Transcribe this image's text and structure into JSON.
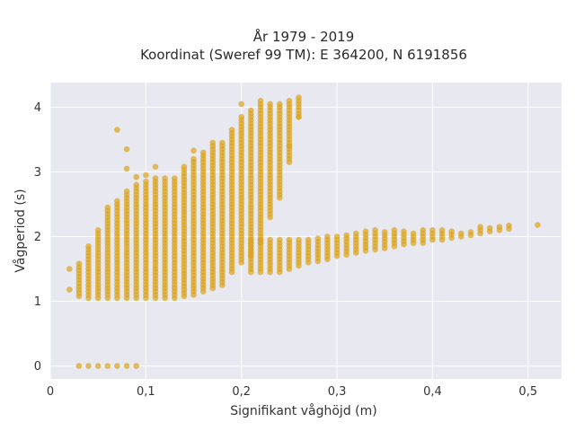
{
  "chart_data": {
    "type": "scatter",
    "title": "År 1979 - 2019",
    "subtitle": "Koordinat (Sweref 99 TM): E 364200, N 6191856",
    "xlabel": "Signifikant våghöjd (m)",
    "ylabel": "Vågperiod (s)",
    "xlim": [
      0,
      0.535
    ],
    "ylim": [
      -0.2,
      4.38
    ],
    "xticks": [
      0,
      0.1,
      0.2,
      0.3,
      0.4,
      0.5
    ],
    "xtick_labels": [
      "0",
      "0,1",
      "0,2",
      "0,3",
      "0,4",
      "0,5"
    ],
    "yticks": [
      0,
      1,
      2,
      3,
      4
    ],
    "ytick_labels": [
      "0",
      "1",
      "2",
      "3",
      "4"
    ],
    "grid": true,
    "background": "#e8e8f0",
    "marker_color": "#daa520",
    "columns": [
      {
        "x": 0.02,
        "ymin": 1.5,
        "ymax": 1.5
      },
      {
        "x": 0.03,
        "ymin": 1.08,
        "ymax": 1.6
      },
      {
        "x": 0.04,
        "ymin": 1.05,
        "ymax": 1.85
      },
      {
        "x": 0.05,
        "ymin": 1.05,
        "ymax": 2.1
      },
      {
        "x": 0.06,
        "ymin": 1.05,
        "ymax": 2.45
      },
      {
        "x": 0.07,
        "ymin": 1.05,
        "ymax": 2.55
      },
      {
        "x": 0.08,
        "ymin": 1.05,
        "ymax": 2.7
      },
      {
        "x": 0.09,
        "ymin": 1.05,
        "ymax": 2.8
      },
      {
        "x": 0.1,
        "ymin": 1.05,
        "ymax": 2.85
      },
      {
        "x": 0.11,
        "ymin": 1.05,
        "ymax": 2.9
      },
      {
        "x": 0.12,
        "ymin": 1.05,
        "ymax": 2.9
      },
      {
        "x": 0.13,
        "ymin": 1.05,
        "ymax": 2.9
      },
      {
        "x": 0.14,
        "ymin": 1.08,
        "ymax": 3.1
      },
      {
        "x": 0.15,
        "ymin": 1.1,
        "ymax": 3.2
      },
      {
        "x": 0.16,
        "ymin": 1.15,
        "ymax": 3.3
      },
      {
        "x": 0.17,
        "ymin": 1.2,
        "ymax": 3.45
      },
      {
        "x": 0.18,
        "ymin": 1.25,
        "ymax": 3.45
      },
      {
        "x": 0.19,
        "ymin": 1.45,
        "ymax": 3.65
      },
      {
        "x": 0.2,
        "ymin": 1.6,
        "ymax": 3.85
      },
      {
        "x": 0.21,
        "ymin": 1.7,
        "ymax": 3.95
      },
      {
        "x": 0.22,
        "ymin": 1.9,
        "ymax": 4.05
      },
      {
        "x": 0.23,
        "ymin": 2.3,
        "ymax": 4.05
      },
      {
        "x": 0.24,
        "ymin": 2.6,
        "ymax": 4.05
      },
      {
        "x": 0.25,
        "ymin": 3.15,
        "ymax": 4.1
      },
      {
        "x": 0.26,
        "ymin": 3.85,
        "ymax": 4.15
      }
    ],
    "lower_band": [
      {
        "x": 0.21,
        "ymin": 1.45,
        "ymax": 1.95
      },
      {
        "x": 0.22,
        "ymin": 1.45,
        "ymax": 1.95
      },
      {
        "x": 0.23,
        "ymin": 1.45,
        "ymax": 1.95
      },
      {
        "x": 0.24,
        "ymin": 1.45,
        "ymax": 1.95
      },
      {
        "x": 0.25,
        "ymin": 1.5,
        "ymax": 1.95
      },
      {
        "x": 0.26,
        "ymin": 1.55,
        "ymax": 1.95
      },
      {
        "x": 0.27,
        "ymin": 1.6,
        "ymax": 1.97
      },
      {
        "x": 0.28,
        "ymin": 1.62,
        "ymax": 1.98
      },
      {
        "x": 0.29,
        "ymin": 1.65,
        "ymax": 2.0
      },
      {
        "x": 0.3,
        "ymin": 1.7,
        "ymax": 2.02
      },
      {
        "x": 0.31,
        "ymin": 1.72,
        "ymax": 2.05
      },
      {
        "x": 0.32,
        "ymin": 1.75,
        "ymax": 2.07
      },
      {
        "x": 0.33,
        "ymin": 1.78,
        "ymax": 2.08
      },
      {
        "x": 0.34,
        "ymin": 1.8,
        "ymax": 2.1
      },
      {
        "x": 0.35,
        "ymin": 1.82,
        "ymax": 2.1
      },
      {
        "x": 0.36,
        "ymin": 1.85,
        "ymax": 2.12
      },
      {
        "x": 0.37,
        "ymin": 1.88,
        "ymax": 2.1
      },
      {
        "x": 0.38,
        "ymin": 1.9,
        "ymax": 2.08
      },
      {
        "x": 0.39,
        "ymin": 1.9,
        "ymax": 2.1
      },
      {
        "x": 0.4,
        "ymin": 1.95,
        "ymax": 2.12
      },
      {
        "x": 0.41,
        "ymin": 1.95,
        "ymax": 2.1
      },
      {
        "x": 0.42,
        "ymin": 1.98,
        "ymax": 2.1
      },
      {
        "x": 0.43,
        "ymin": 2.0,
        "ymax": 2.08
      },
      {
        "x": 0.44,
        "ymin": 2.02,
        "ymax": 2.1
      },
      {
        "x": 0.45,
        "ymin": 2.05,
        "ymax": 2.15
      },
      {
        "x": 0.46,
        "ymin": 2.08,
        "ymax": 2.15
      },
      {
        "x": 0.47,
        "ymin": 2.1,
        "ymax": 2.15
      },
      {
        "x": 0.48,
        "ymin": 2.12,
        "ymax": 2.18
      }
    ],
    "isolated_points": [
      {
        "x": 0.02,
        "y": 1.18
      },
      {
        "x": 0.07,
        "y": 3.65
      },
      {
        "x": 0.08,
        "y": 3.35
      },
      {
        "x": 0.08,
        "y": 3.05
      },
      {
        "x": 0.09,
        "y": 2.92
      },
      {
        "x": 0.1,
        "y": 2.95
      },
      {
        "x": 0.11,
        "y": 3.08
      },
      {
        "x": 0.15,
        "y": 3.33
      },
      {
        "x": 0.2,
        "y": 4.05
      },
      {
        "x": 0.22,
        "y": 4.1
      },
      {
        "x": 0.25,
        "y": 3.4
      },
      {
        "x": 0.26,
        "y": 3.85
      },
      {
        "x": 0.51,
        "y": 2.18
      }
    ],
    "zero_row": {
      "xs": [
        0.03,
        0.04,
        0.05,
        0.06,
        0.07,
        0.08,
        0.09
      ],
      "y": 0
    }
  }
}
